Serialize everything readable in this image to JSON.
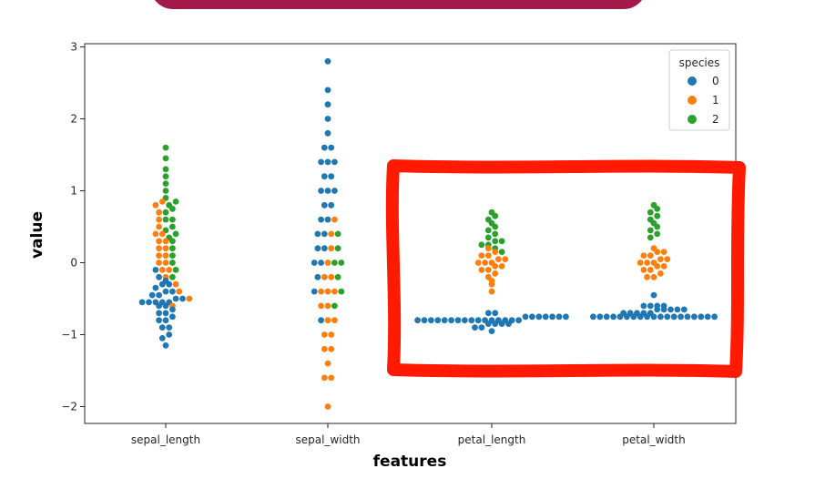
{
  "chart_data": {
    "type": "swarm",
    "xlabel": "features",
    "ylabel": "value",
    "categories": [
      "sepal_length",
      "sepal_width",
      "petal_length",
      "petal_width"
    ],
    "ylim": [
      -2.25,
      3.1
    ],
    "yticks": [
      -2,
      -1,
      0,
      1,
      2,
      3
    ],
    "yticklabels": [
      "−2",
      "−1",
      "0",
      "1",
      "2",
      "3"
    ],
    "grid": false,
    "legend": {
      "title": "species",
      "placement": "top-right",
      "entries": [
        {
          "label": "0",
          "color": "#1f77b4"
        },
        {
          "label": "1",
          "color": "#ff7f0e"
        },
        {
          "label": "2",
          "color": "#2ca02c"
        }
      ]
    },
    "series": [
      {
        "name": "0",
        "color": "#1f77b4",
        "values_by_category": [
          [
            -1.15,
            -1.05,
            -1.0,
            -0.9,
            -0.9,
            -0.8,
            -0.8,
            -0.75,
            -0.7,
            -0.7,
            -0.65,
            -0.6,
            -0.6,
            -0.55,
            -0.55,
            -0.55,
            -0.55,
            -0.55,
            -0.5,
            -0.5,
            -0.45,
            -0.45,
            -0.4,
            -0.4,
            -0.35,
            -0.3,
            -0.3,
            -0.25,
            -0.2,
            -0.1
          ],
          [
            -0.8,
            -0.4,
            -0.2,
            0.0,
            0.0,
            0.2,
            0.2,
            0.4,
            0.4,
            0.6,
            0.6,
            0.8,
            0.8,
            1.0,
            1.0,
            1.0,
            1.2,
            1.2,
            1.4,
            1.4,
            1.4,
            1.6,
            1.6,
            1.8,
            2.0,
            2.2,
            2.4,
            2.8
          ],
          [
            -0.95,
            -0.9,
            -0.9,
            -0.85,
            -0.85,
            -0.85,
            -0.85,
            -0.8,
            -0.8,
            -0.8,
            -0.8,
            -0.8,
            -0.8,
            -0.8,
            -0.8,
            -0.8,
            -0.8,
            -0.8,
            -0.8,
            -0.8,
            -0.8,
            -0.8,
            -0.8,
            -0.75,
            -0.75,
            -0.75,
            -0.75,
            -0.75,
            -0.75,
            -0.75,
            -0.7,
            -0.7
          ],
          [
            -0.75,
            -0.75,
            -0.75,
            -0.75,
            -0.75,
            -0.75,
            -0.75,
            -0.75,
            -0.75,
            -0.75,
            -0.75,
            -0.75,
            -0.75,
            -0.75,
            -0.75,
            -0.75,
            -0.75,
            -0.75,
            -0.75,
            -0.7,
            -0.7,
            -0.7,
            -0.7,
            -0.7,
            -0.65,
            -0.65,
            -0.65,
            -0.65,
            -0.65,
            -0.6,
            -0.6,
            -0.6,
            -0.6,
            -0.45
          ]
        ]
      },
      {
        "name": "1",
        "color": "#ff7f0e",
        "values_by_category": [
          [
            -0.6,
            -0.5,
            -0.4,
            -0.3,
            -0.2,
            -0.1,
            -0.1,
            0.0,
            0.0,
            0.1,
            0.1,
            0.2,
            0.2,
            0.3,
            0.3,
            0.4,
            0.4,
            0.5,
            0.6,
            0.7,
            0.8,
            0.85
          ],
          [
            -2.0,
            -1.6,
            -1.6,
            -1.4,
            -1.2,
            -1.2,
            -1.0,
            -1.0,
            -0.8,
            -0.8,
            -0.6,
            -0.6,
            -0.4,
            -0.4,
            -0.4,
            -0.2,
            -0.2,
            0.0,
            0.2,
            0.4,
            0.6
          ],
          [
            -0.4,
            -0.3,
            -0.25,
            -0.2,
            -0.15,
            -0.1,
            -0.1,
            -0.05,
            -0.05,
            0.0,
            0.0,
            0.0,
            0.05,
            0.05,
            0.1,
            0.1,
            0.15,
            0.2
          ],
          [
            -0.2,
            -0.2,
            -0.15,
            -0.1,
            -0.1,
            -0.05,
            -0.05,
            0.0,
            0.0,
            0.0,
            0.05,
            0.05,
            0.1,
            0.1,
            0.15,
            0.15,
            0.2
          ]
        ]
      },
      {
        "name": "2",
        "color": "#2ca02c",
        "values_by_category": [
          [
            -0.2,
            -0.1,
            0.0,
            0.1,
            0.2,
            0.3,
            0.35,
            0.4,
            0.45,
            0.5,
            0.6,
            0.6,
            0.7,
            0.75,
            0.8,
            0.85,
            0.9,
            1.0,
            1.1,
            1.2,
            1.3,
            1.45,
            1.6
          ],
          [
            -0.6,
            -0.4,
            -0.2,
            0.0,
            0.0,
            0.2,
            0.4
          ],
          [
            0.15,
            0.2,
            0.25,
            0.25,
            0.3,
            0.3,
            0.35,
            0.4,
            0.45,
            0.5,
            0.55,
            0.6,
            0.65,
            0.7
          ],
          [
            0.35,
            0.4,
            0.45,
            0.5,
            0.55,
            0.6,
            0.65,
            0.7,
            0.75,
            0.8
          ]
        ]
      }
    ]
  },
  "annotation": {
    "highlight_color": "#ff1a00"
  },
  "banner": {
    "color": "#a3194a"
  }
}
